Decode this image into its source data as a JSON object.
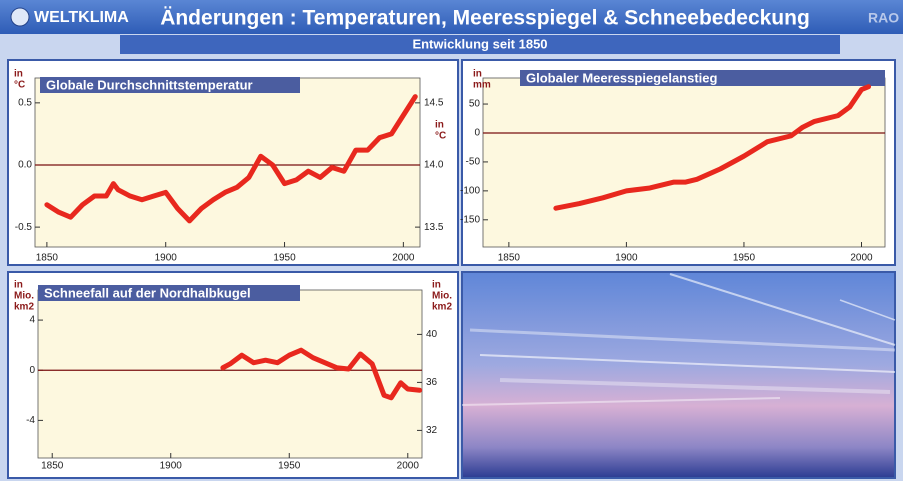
{
  "header": {
    "logo": "WELTKLIMA",
    "title": "Änderungen : Temperaturen, Meeresspiegel & Schneebedeckung",
    "corner": "RAO",
    "subtitle": "Entwicklung seit 1850"
  },
  "chart_data": [
    {
      "type": "line",
      "title": "Globale Durchschnittstemperatur",
      "ylabel": [
        "in",
        "°C"
      ],
      "y2label": [
        "in",
        "°C"
      ],
      "x": [
        1850,
        1855,
        1860,
        1865,
        1870,
        1875,
        1878,
        1880,
        1885,
        1890,
        1895,
        1900,
        1905,
        1910,
        1915,
        1920,
        1925,
        1930,
        1935,
        1940,
        1945,
        1950,
        1955,
        1960,
        1965,
        1970,
        1975,
        1980,
        1985,
        1990,
        1995,
        2000,
        2005
      ],
      "series": [
        {
          "color": "#e8281e",
          "values": [
            -0.32,
            -0.38,
            -0.42,
            -0.32,
            -0.25,
            -0.25,
            -0.15,
            -0.2,
            -0.25,
            -0.28,
            -0.25,
            -0.22,
            -0.35,
            -0.45,
            -0.35,
            -0.28,
            -0.22,
            -0.18,
            -0.1,
            0.07,
            0.0,
            -0.15,
            -0.12,
            -0.05,
            -0.1,
            -0.02,
            -0.05,
            0.12,
            0.12,
            0.22,
            0.25,
            0.4,
            0.55
          ]
        }
      ],
      "xlim": [
        1845,
        2007
      ],
      "xticks": [
        1850,
        1900,
        1950,
        2000
      ],
      "ylim": [
        -0.66,
        0.7
      ],
      "yticks": [
        -0.5,
        {
          "value": 0,
          "label": "0.0"
        },
        0.5
      ],
      "y2lim": [
        13.34,
        14.7
      ],
      "y2ticks": [
        13.5,
        {
          "value": 14,
          "label": "14.0"
        },
        14.5
      ],
      "refline": 0
    },
    {
      "type": "line",
      "title": "Globaler Meeresspiegelanstieg",
      "ylabel": [
        "in",
        "mm"
      ],
      "x": [
        1870,
        1880,
        1890,
        1900,
        1910,
        1920,
        1925,
        1930,
        1940,
        1950,
        1960,
        1970,
        1975,
        1980,
        1990,
        1995,
        2000,
        2003
      ],
      "series": [
        {
          "color": "#e8281e",
          "values": [
            -130,
            -122,
            -112,
            -100,
            -95,
            -85,
            -85,
            -80,
            -62,
            -40,
            -15,
            -5,
            10,
            20,
            30,
            45,
            75,
            80
          ]
        }
      ],
      "xlim": [
        1839,
        2010
      ],
      "xticks": [
        1850,
        1900,
        1950,
        2000
      ],
      "ylim": [
        -197,
        95
      ],
      "yticks": [
        -150,
        -100,
        -50,
        0,
        50
      ],
      "refline": 0
    },
    {
      "type": "line",
      "title": "Schneefall auf der Nordhalbkugel",
      "ylabel": [
        "in",
        "Mio.",
        "km2"
      ],
      "y2label": [
        "in",
        "Mio.",
        "km2"
      ],
      "x": [
        1922,
        1925,
        1930,
        1935,
        1940,
        1945,
        1950,
        1955,
        1960,
        1965,
        1970,
        1975,
        1980,
        1985,
        1990,
        1993,
        1997,
        2000,
        2005
      ],
      "series": [
        {
          "color": "#e8281e",
          "values": [
            0.2,
            0.5,
            1.2,
            0.6,
            0.8,
            0.6,
            1.2,
            1.6,
            1.0,
            0.6,
            0.2,
            0.1,
            1.3,
            0.5,
            -2.0,
            -2.2,
            -1.0,
            -1.5,
            -1.6
          ]
        }
      ],
      "xlim": [
        1844,
        2006
      ],
      "xticks": [
        1850,
        1900,
        1950,
        2000
      ],
      "ylim": [
        -7,
        6.4
      ],
      "yticks": [
        -4,
        0,
        4
      ],
      "y2lim": [
        29.7,
        43.7
      ],
      "y2ticks": [
        32,
        36,
        40
      ],
      "refline": 0
    }
  ]
}
